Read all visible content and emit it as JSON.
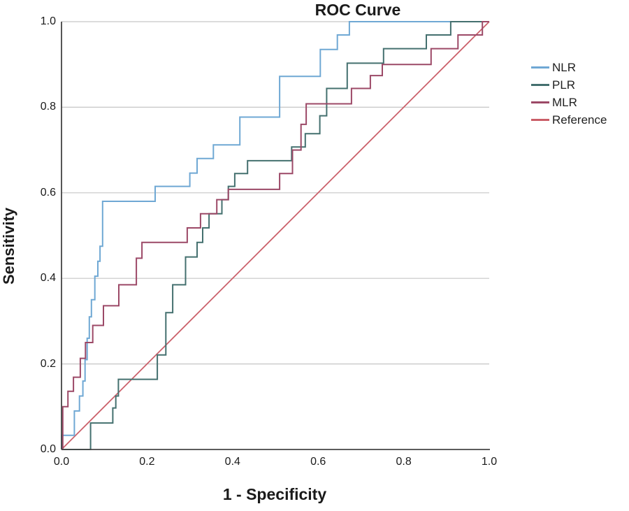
{
  "title": "ROC Curve",
  "axes": {
    "x_label": "1 - Specificity",
    "y_label": "Sensitivity",
    "x_ticks": [
      "0.0",
      "0.2",
      "0.4",
      "0.6",
      "0.8",
      "1.0"
    ],
    "y_ticks": [
      "0.0",
      "0.2",
      "0.4",
      "0.6",
      "0.8",
      "1.0"
    ]
  },
  "legend": {
    "position": "right",
    "items": [
      {
        "label": "NLR",
        "color": "#6fa8d4"
      },
      {
        "label": "PLR",
        "color": "#44706f"
      },
      {
        "label": "MLR",
        "color": "#9c4967"
      },
      {
        "label": "Reference",
        "color": "#ca5e68"
      }
    ]
  },
  "colors": {
    "grid": "#c6c6c6",
    "axis": "#444444",
    "text": "#1a1a1a",
    "background": "#ffffff"
  },
  "chart_data": {
    "type": "line",
    "subtype": "roc-step-curves",
    "title": "ROC Curve",
    "xlabel": "1 - Specificity",
    "ylabel": "Sensitivity",
    "xlim": [
      0,
      1
    ],
    "ylim": [
      0,
      1
    ],
    "grid": "horizontal",
    "legend_position": "right",
    "series": [
      {
        "name": "NLR",
        "color": "#6fa8d4",
        "points": [
          [
            0,
            0
          ],
          [
            0,
            0.033
          ],
          [
            0.03,
            0.033
          ],
          [
            0.03,
            0.09
          ],
          [
            0.042,
            0.09
          ],
          [
            0.042,
            0.125
          ],
          [
            0.05,
            0.125
          ],
          [
            0.05,
            0.16
          ],
          [
            0.055,
            0.16
          ],
          [
            0.055,
            0.21
          ],
          [
            0.06,
            0.21
          ],
          [
            0.06,
            0.26
          ],
          [
            0.065,
            0.26
          ],
          [
            0.065,
            0.31
          ],
          [
            0.07,
            0.31
          ],
          [
            0.07,
            0.35
          ],
          [
            0.078,
            0.35
          ],
          [
            0.078,
            0.405
          ],
          [
            0.085,
            0.405
          ],
          [
            0.085,
            0.44
          ],
          [
            0.09,
            0.44
          ],
          [
            0.09,
            0.475
          ],
          [
            0.096,
            0.475
          ],
          [
            0.096,
            0.58
          ],
          [
            0.219,
            0.58
          ],
          [
            0.219,
            0.615
          ],
          [
            0.3,
            0.615
          ],
          [
            0.3,
            0.646
          ],
          [
            0.317,
            0.646
          ],
          [
            0.317,
            0.68
          ],
          [
            0.355,
            0.68
          ],
          [
            0.355,
            0.712
          ],
          [
            0.417,
            0.712
          ],
          [
            0.417,
            0.777
          ],
          [
            0.51,
            0.777
          ],
          [
            0.51,
            0.872
          ],
          [
            0.605,
            0.872
          ],
          [
            0.605,
            0.935
          ],
          [
            0.645,
            0.935
          ],
          [
            0.645,
            0.969
          ],
          [
            0.673,
            0.969
          ],
          [
            0.673,
            1
          ],
          [
            1,
            1
          ]
        ]
      },
      {
        "name": "PLR",
        "color": "#44706f",
        "points": [
          [
            0,
            0
          ],
          [
            0.068,
            0
          ],
          [
            0.068,
            0.062
          ],
          [
            0.12,
            0.062
          ],
          [
            0.12,
            0.097
          ],
          [
            0.127,
            0.097
          ],
          [
            0.127,
            0.125
          ],
          [
            0.133,
            0.125
          ],
          [
            0.133,
            0.164
          ],
          [
            0.224,
            0.164
          ],
          [
            0.224,
            0.221
          ],
          [
            0.244,
            0.221
          ],
          [
            0.244,
            0.32
          ],
          [
            0.26,
            0.32
          ],
          [
            0.26,
            0.385
          ],
          [
            0.29,
            0.385
          ],
          [
            0.29,
            0.45
          ],
          [
            0.317,
            0.45
          ],
          [
            0.317,
            0.484
          ],
          [
            0.33,
            0.484
          ],
          [
            0.33,
            0.518
          ],
          [
            0.345,
            0.518
          ],
          [
            0.345,
            0.551
          ],
          [
            0.375,
            0.551
          ],
          [
            0.375,
            0.584
          ],
          [
            0.39,
            0.584
          ],
          [
            0.39,
            0.615
          ],
          [
            0.405,
            0.615
          ],
          [
            0.405,
            0.645
          ],
          [
            0.435,
            0.645
          ],
          [
            0.435,
            0.675
          ],
          [
            0.538,
            0.675
          ],
          [
            0.538,
            0.707
          ],
          [
            0.57,
            0.707
          ],
          [
            0.57,
            0.738
          ],
          [
            0.604,
            0.738
          ],
          [
            0.604,
            0.78
          ],
          [
            0.62,
            0.78
          ],
          [
            0.62,
            0.844
          ],
          [
            0.668,
            0.844
          ],
          [
            0.668,
            0.903
          ],
          [
            0.753,
            0.903
          ],
          [
            0.753,
            0.937
          ],
          [
            0.853,
            0.937
          ],
          [
            0.853,
            0.969
          ],
          [
            0.91,
            0.969
          ],
          [
            0.91,
            1
          ],
          [
            1,
            1
          ]
        ]
      },
      {
        "name": "MLR",
        "color": "#9c4967",
        "points": [
          [
            0,
            0
          ],
          [
            0.003,
            0
          ],
          [
            0.003,
            0.1
          ],
          [
            0.015,
            0.1
          ],
          [
            0.015,
            0.136
          ],
          [
            0.028,
            0.136
          ],
          [
            0.028,
            0.169
          ],
          [
            0.044,
            0.169
          ],
          [
            0.044,
            0.213
          ],
          [
            0.056,
            0.213
          ],
          [
            0.056,
            0.25
          ],
          [
            0.073,
            0.25
          ],
          [
            0.073,
            0.29
          ],
          [
            0.098,
            0.29
          ],
          [
            0.098,
            0.336
          ],
          [
            0.134,
            0.336
          ],
          [
            0.134,
            0.385
          ],
          [
            0.175,
            0.385
          ],
          [
            0.175,
            0.447
          ],
          [
            0.188,
            0.447
          ],
          [
            0.188,
            0.484
          ],
          [
            0.294,
            0.484
          ],
          [
            0.294,
            0.518
          ],
          [
            0.325,
            0.518
          ],
          [
            0.325,
            0.551
          ],
          [
            0.363,
            0.551
          ],
          [
            0.363,
            0.584
          ],
          [
            0.39,
            0.584
          ],
          [
            0.39,
            0.608
          ],
          [
            0.51,
            0.608
          ],
          [
            0.51,
            0.645
          ],
          [
            0.54,
            0.645
          ],
          [
            0.54,
            0.7
          ],
          [
            0.56,
            0.7
          ],
          [
            0.56,
            0.76
          ],
          [
            0.572,
            0.76
          ],
          [
            0.572,
            0.808
          ],
          [
            0.678,
            0.808
          ],
          [
            0.678,
            0.844
          ],
          [
            0.722,
            0.844
          ],
          [
            0.722,
            0.874
          ],
          [
            0.75,
            0.874
          ],
          [
            0.75,
            0.9
          ],
          [
            0.864,
            0.9
          ],
          [
            0.864,
            0.937
          ],
          [
            0.927,
            0.937
          ],
          [
            0.927,
            0.969
          ],
          [
            0.984,
            0.969
          ],
          [
            0.984,
            1
          ],
          [
            1,
            1
          ]
        ]
      }
    ],
    "reference": {
      "name": "Reference",
      "color": "#ca5e68",
      "points": [
        [
          0,
          0
        ],
        [
          1,
          1
        ]
      ]
    }
  }
}
